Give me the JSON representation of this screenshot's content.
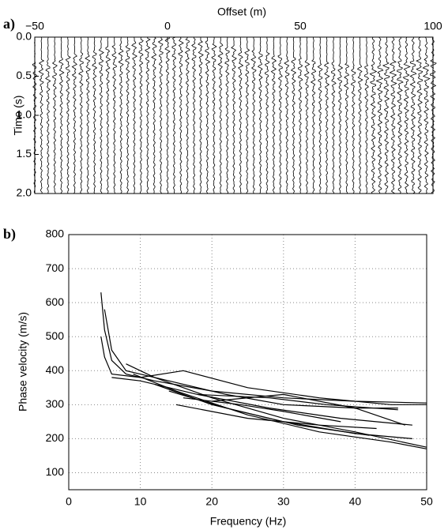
{
  "chart_data": [
    {
      "type": "wiggle",
      "panel_label": "a)",
      "x_label": "Offset (m)",
      "y_label": "Time (s)",
      "xlim": [
        -50,
        100
      ],
      "xticks": [
        {
          "value": -50,
          "label": "−50"
        },
        0,
        50,
        100
      ],
      "ylim": [
        0,
        2
      ],
      "y_inverted": true,
      "yticks": [
        {
          "value": 0,
          "label": "0.0"
        },
        {
          "value": 0.5,
          "label": "0.5"
        },
        {
          "value": 1,
          "label": "1.0"
        },
        {
          "value": 1.5,
          "label": "1.5"
        },
        {
          "value": 2,
          "label": "2.0"
        }
      ],
      "color": "#000000",
      "x": [
        -50,
        -47.5,
        -45,
        -42.5,
        -40,
        -37.5,
        -35,
        -32.5,
        -30,
        -27.5,
        -25,
        -22.5,
        -20,
        -17.5,
        -15,
        -12.5,
        -10,
        -7.5,
        -5,
        -2.5,
        0,
        2.5,
        5,
        7.5,
        10,
        12.5,
        15,
        17.5,
        20,
        22.5,
        25,
        27.5,
        30,
        32.5,
        35,
        37.5,
        40,
        42.5,
        45,
        47.5,
        50,
        52.5,
        55,
        57.5,
        60,
        62.5,
        65,
        67.5,
        70,
        72.5,
        75,
        77.5,
        80,
        82.5,
        85,
        87.5,
        90,
        92.5,
        95,
        97.5,
        100
      ],
      "values": [
        0.35,
        0.33,
        0.32,
        0.3,
        0.28,
        0.26,
        0.25,
        0.23,
        0.21,
        0.19,
        0.18,
        0.16,
        0.14,
        0.12,
        0.11,
        0.09,
        0.07,
        0.05,
        0.04,
        0.02,
        0.0,
        0.02,
        0.03,
        0.05,
        0.06,
        0.08,
        0.09,
        0.11,
        0.12,
        0.14,
        0.15,
        0.17,
        0.18,
        0.2,
        0.21,
        0.23,
        0.24,
        0.26,
        0.27,
        0.29,
        0.3,
        0.32,
        0.33,
        0.35,
        0.36,
        0.36,
        0.37,
        0.37,
        0.38,
        0.38,
        0.38,
        0.37,
        0.36,
        0.35,
        0.34,
        0.33,
        0.32,
        0.32,
        0.31,
        0.31,
        0.3
      ]
    },
    {
      "type": "line",
      "panel_label": "b)",
      "x_label": "Frequency (Hz)",
      "y_label": "Phase velocity (m/s)",
      "xlim": [
        0,
        50
      ],
      "xticks": [
        0,
        10,
        20,
        30,
        40,
        50
      ],
      "ylim": [
        50,
        800
      ],
      "yticks": [
        100,
        200,
        300,
        400,
        500,
        600,
        700,
        800
      ],
      "grid": true,
      "series": [
        {
          "color": "#000000",
          "x": [
            4.5,
            5,
            6,
            8,
            12,
            20,
            30,
            40,
            50
          ],
          "values": [
            630,
            520,
            430,
            390,
            370,
            340,
            320,
            310,
            305
          ]
        },
        {
          "color": "#000000",
          "x": [
            4.5,
            5,
            6,
            10,
            16,
            25,
            35,
            45,
            50
          ],
          "values": [
            500,
            440,
            390,
            380,
            400,
            350,
            320,
            300,
            300
          ]
        },
        {
          "color": "#000000",
          "x": [
            5,
            6,
            8,
            14,
            22,
            30,
            40,
            46
          ],
          "values": [
            580,
            460,
            400,
            370,
            330,
            300,
            290,
            290
          ]
        },
        {
          "color": "#000000",
          "x": [
            6,
            10,
            18,
            28,
            38,
            48
          ],
          "values": [
            380,
            370,
            330,
            290,
            260,
            240
          ]
        },
        {
          "color": "#000000",
          "x": [
            8,
            12,
            20,
            30,
            40,
            50
          ],
          "values": [
            420,
            380,
            320,
            260,
            220,
            175
          ]
        },
        {
          "color": "#000000",
          "x": [
            9,
            15,
            25,
            35,
            45,
            50
          ],
          "values": [
            390,
            340,
            270,
            220,
            190,
            170
          ]
        },
        {
          "color": "#000000",
          "x": [
            12,
            20,
            30,
            40,
            48
          ],
          "values": [
            360,
            300,
            250,
            215,
            200
          ]
        },
        {
          "color": "#000000",
          "x": [
            14,
            22,
            32,
            42
          ],
          "values": [
            340,
            290,
            240,
            210
          ]
        },
        {
          "color": "#000000",
          "x": [
            16,
            24,
            30,
            38
          ],
          "values": [
            320,
            300,
            280,
            250
          ]
        },
        {
          "color": "#000000",
          "x": [
            15,
            25,
            35,
            43
          ],
          "values": [
            300,
            260,
            240,
            230
          ]
        },
        {
          "color": "#000000",
          "x": [
            18,
            28,
            36,
            46
          ],
          "values": [
            330,
            320,
            300,
            285
          ]
        },
        {
          "color": "#000000",
          "x": [
            20,
            30,
            40,
            47
          ],
          "values": [
            310,
            330,
            290,
            240
          ]
        }
      ]
    }
  ]
}
